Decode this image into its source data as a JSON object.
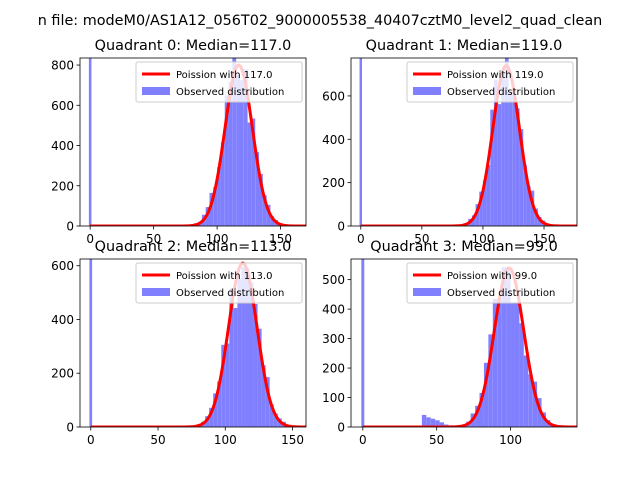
{
  "chart_data": {
    "type": "histogram",
    "suptitle": "n file: modeM0/AS1A12_056T02_9000005538_40407cztM0_level2_quad_clean",
    "legend": {
      "poisson_prefix": "Poission with",
      "observed": "Observed distribution",
      "placement": "upper right"
    },
    "colors": {
      "poisson": "#ff0000",
      "observed": "#8080ff"
    },
    "panels": [
      {
        "title": "Quadrant 0: Median=117.0",
        "median": 117.0,
        "poisson_label": "Poission with 117.0",
        "xlim": [
          -8,
          170
        ],
        "ylim": [
          0,
          835
        ],
        "xticks": [
          0,
          50,
          100,
          150
        ],
        "yticks": [
          0,
          200,
          400,
          600,
          800
        ],
        "spike": {
          "x": 0,
          "value": 1000
        },
        "peak": 800,
        "shoulder": {
          "center": 85,
          "width": 12,
          "height": 0
        },
        "seed": 3
      },
      {
        "title": "Quadrant 1: Median=119.0",
        "median": 119.0,
        "poisson_label": "Poission with 119.0",
        "xlim": [
          -8,
          177
        ],
        "ylim": [
          0,
          775
        ],
        "xticks": [
          0,
          50,
          100,
          150
        ],
        "yticks": [
          0,
          200,
          400,
          600
        ],
        "spike": {
          "x": 0,
          "value": 1000
        },
        "peak": 740,
        "shoulder": {
          "center": 85,
          "width": 12,
          "height": 0
        },
        "seed": 7
      },
      {
        "title": "Quadrant 2: Median=113.0",
        "median": 113.0,
        "poisson_label": "Poission with 113.0",
        "xlim": [
          -8,
          160
        ],
        "ylim": [
          0,
          625
        ],
        "xticks": [
          0,
          50,
          100,
          150
        ],
        "yticks": [
          0,
          200,
          400,
          600
        ],
        "spike": {
          "x": 0,
          "value": 1000
        },
        "peak": 610,
        "shoulder": {
          "center": 80,
          "width": 12,
          "height": 0
        },
        "seed": 11
      },
      {
        "title": "Quadrant 3: Median=99.0",
        "median": 99.0,
        "poisson_label": "Poission with 99.0",
        "xlim": [
          -8,
          145
        ],
        "ylim": [
          0,
          570
        ],
        "xticks": [
          0,
          50,
          100
        ],
        "yticks": [
          0,
          100,
          200,
          300,
          400,
          500
        ],
        "spike": {
          "x": 0,
          "value": 1000
        },
        "peak": 540,
        "shoulder": {
          "center": 40,
          "width": 10,
          "height": 35
        },
        "seed": 19
      }
    ]
  }
}
